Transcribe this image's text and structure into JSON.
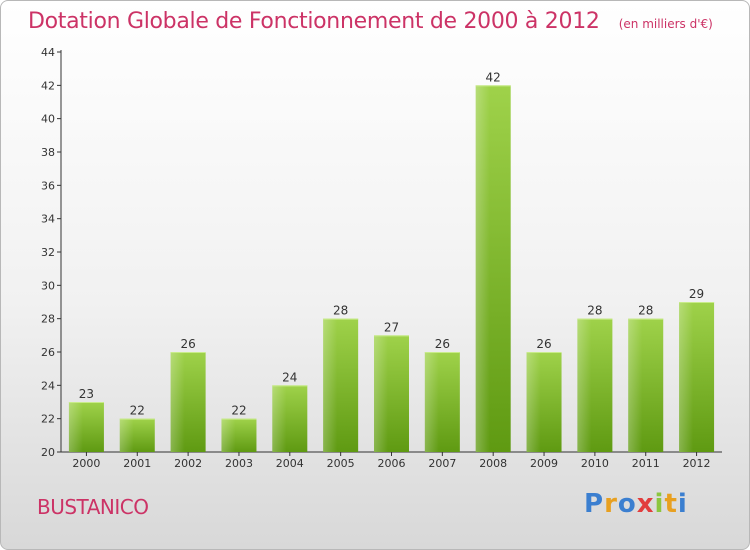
{
  "header": {
    "title": "Dotation Globale de Fonctionnement de 2000 à 2012",
    "unit": "(en milliers d'€)"
  },
  "footer": {
    "town": "BUSTANICO",
    "logo_text": "Proxiti"
  },
  "colors": {
    "title": "#cc3366",
    "bar_light": "#9fd24a",
    "bar_dark": "#5f9a12",
    "axis": "#333333"
  },
  "chart_data": {
    "type": "bar",
    "title": "Dotation Globale de Fonctionnement de 2000 à 2012",
    "subtitle": "(en milliers d'€)",
    "categories": [
      "2000",
      "2001",
      "2002",
      "2003",
      "2004",
      "2005",
      "2006",
      "2007",
      "2008",
      "2009",
      "2010",
      "2011",
      "2012"
    ],
    "values": [
      23,
      22,
      26,
      22,
      24,
      28,
      27,
      26,
      42,
      26,
      28,
      28,
      29
    ],
    "ylim": [
      20,
      44
    ],
    "yticks": [
      20,
      22,
      24,
      26,
      28,
      30,
      32,
      34,
      36,
      38,
      40,
      42,
      44
    ],
    "grid": false,
    "xlabel": "",
    "ylabel": ""
  }
}
